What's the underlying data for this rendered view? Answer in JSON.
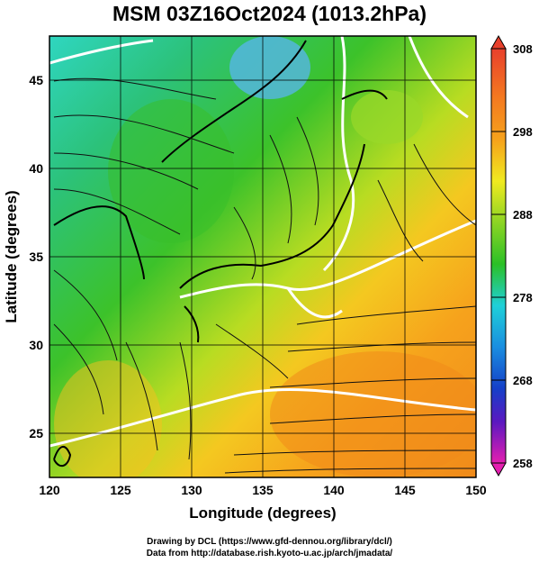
{
  "title": "MSM 03Z16Oct2024 (1013.2hPa)",
  "axes": {
    "xlabel": "Longitude (degrees)",
    "ylabel": "Latitude  (degrees)",
    "xticks": [
      "120",
      "125",
      "130",
      "135",
      "140",
      "145",
      "150"
    ],
    "yticks": [
      "45",
      "40",
      "35",
      "30",
      "25"
    ],
    "xlim": [
      120,
      150
    ],
    "ylim": [
      22.5,
      47.5
    ]
  },
  "colorbar": {
    "ticks": [
      "308",
      "298",
      "288",
      "278",
      "268",
      "258"
    ],
    "range": [
      258,
      308
    ],
    "colors": {
      "top": "#e8402c",
      "warm": "#f6a21c",
      "mid": "#f0ea20",
      "green": "#2bc026",
      "cyan": "#1fd0d8",
      "blue": "#1540c8",
      "bottom": "#e41fb0"
    }
  },
  "credits": {
    "line1": "Drawing by DCL (https://www.gfd-dennou.org/library/dcl/)",
    "line2": "Data from http://database.rish.kyoto-u.ac.jp/arch/jmadata/"
  }
}
